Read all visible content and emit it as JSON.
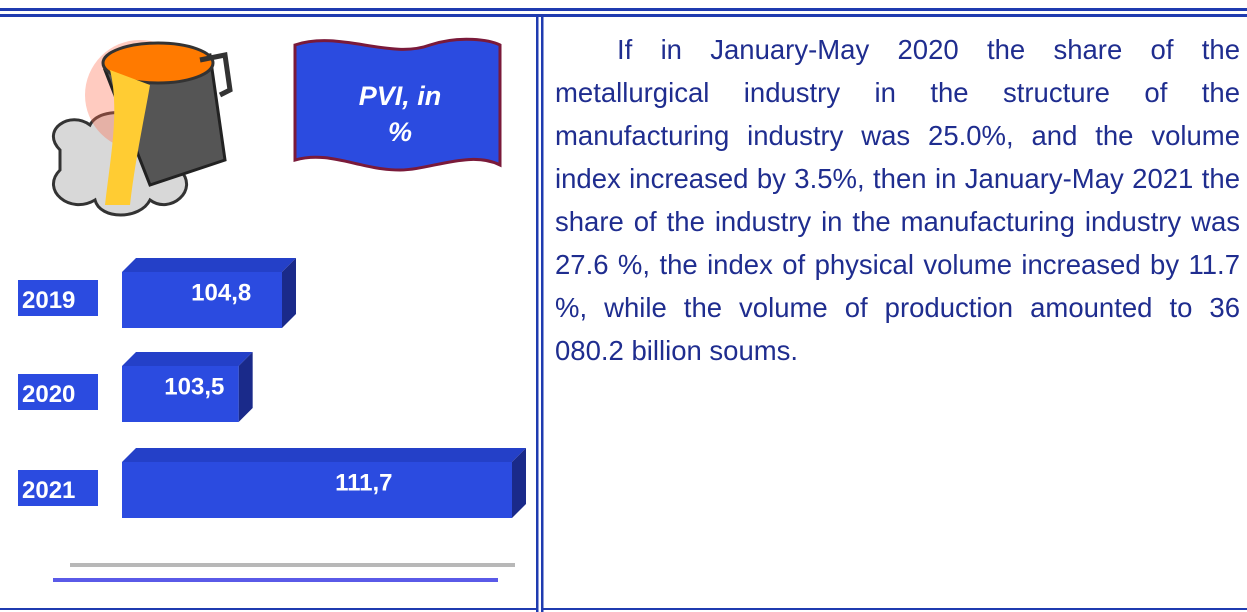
{
  "chart_data": {
    "type": "bar",
    "title": "PVI, in %",
    "categories": [
      "2019",
      "2020",
      "2021"
    ],
    "values": [
      104.8,
      103.5,
      111.7
    ],
    "value_labels": [
      "104,8",
      "103,5",
      "111,7"
    ],
    "color": "#2b4be0",
    "xlim": [
      100,
      112
    ]
  },
  "paragraph": "If in January-May 2020 the share of the metallurgical industry in the structure of the manufacturing industry was 25.0%, and the volume index increased by 3.5%, then in January-May 2021 the share of the industry in the manufacturing industry was 27.6 %, the index of physical volume increased by 11.7 %, while the volume of production amounted to 36 080.2 billion soums."
}
